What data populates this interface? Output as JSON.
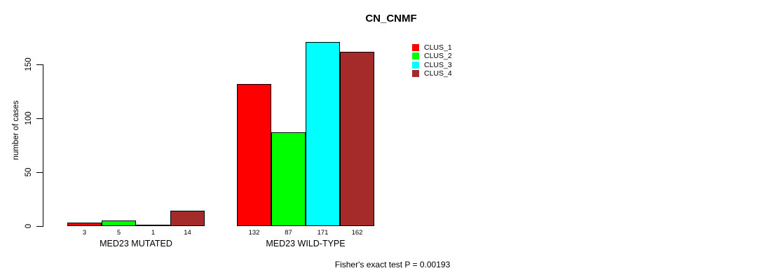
{
  "title": "CN_CNMF",
  "ylabel": "number of cases",
  "footer": "Fisher's exact test P = 0.00193",
  "legend": {
    "position": "top-right",
    "items": [
      {
        "label": "CLUS_1",
        "color": "#FF0000"
      },
      {
        "label": "CLUS_2",
        "color": "#00FF00"
      },
      {
        "label": "CLUS_3",
        "color": "#00FFFF"
      },
      {
        "label": "CLUS_4",
        "color": "#A52A2A"
      }
    ]
  },
  "chart_data": {
    "type": "bar",
    "title": "CN_CNMF",
    "xlabel": "",
    "ylabel": "number of cases",
    "ylim": [
      0,
      175
    ],
    "yticks": [
      0,
      50,
      100,
      150
    ],
    "grid": false,
    "legend_position": "top-right",
    "groups": [
      "MED23 MUTATED",
      "MED23 WILD-TYPE"
    ],
    "series": [
      {
        "name": "CLUS_1",
        "color": "#FF0000",
        "values": [
          3,
          132
        ]
      },
      {
        "name": "CLUS_2",
        "color": "#00FF00",
        "values": [
          5,
          87
        ]
      },
      {
        "name": "CLUS_3",
        "color": "#00FFFF",
        "values": [
          1,
          171
        ]
      },
      {
        "name": "CLUS_4",
        "color": "#A52A2A",
        "values": [
          14,
          162
        ]
      }
    ],
    "bar_value_labels": [
      [
        "3",
        "5",
        "1",
        "14"
      ],
      [
        "132",
        "87",
        "171",
        "162"
      ]
    ],
    "annotation": "Fisher's exact test P = 0.00193"
  }
}
